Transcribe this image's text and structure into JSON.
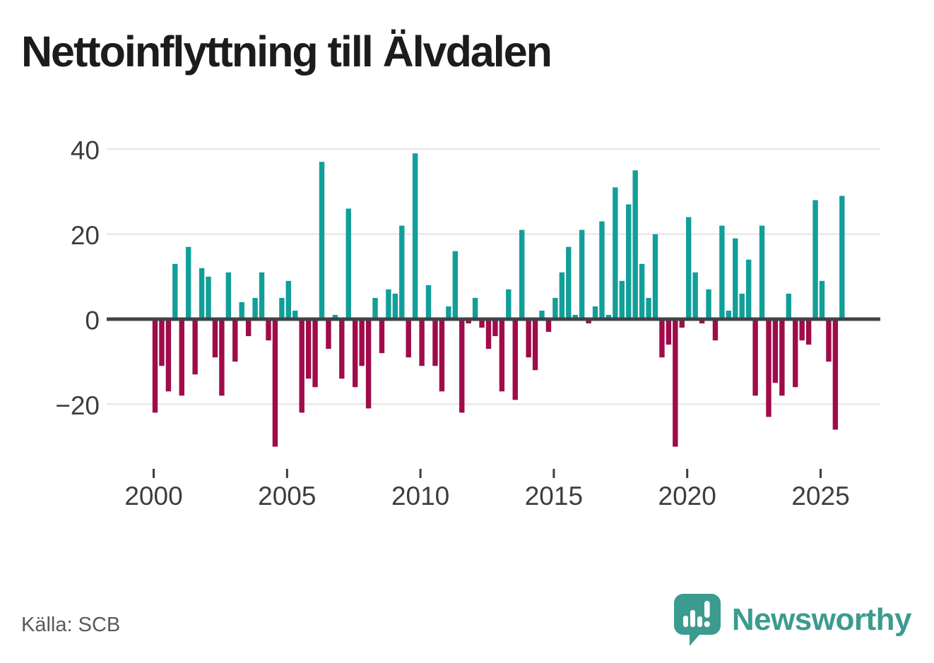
{
  "title": "Nettoinflyttning till Älvdalen",
  "source": "Källa: SCB",
  "branding": {
    "name": "Newsworthy",
    "icon": "speech-bubble-with-bar-chart-and-exclamation"
  },
  "colors": {
    "positive": "#129e99",
    "negative": "#a00b4a",
    "grid": "#e3e3e3",
    "zero_line": "#3f4347",
    "tick_label": "#3d3d3d",
    "title": "#1c1c1c",
    "source": "#5a5a5a",
    "brand": "#3c9b8f",
    "background": "#ffffff"
  },
  "y_axis": {
    "ticks": [
      40,
      20,
      0,
      -20
    ]
  },
  "x_axis": {
    "ticks": [
      "2000",
      "2005",
      "2010",
      "2015",
      "2020",
      "2025"
    ]
  },
  "chart_data": {
    "type": "bar",
    "title": "Nettoinflyttning till Älvdalen",
    "xlabel": "",
    "ylabel": "",
    "frequency": "quarterly",
    "ylim": [
      -32,
      42
    ],
    "grid": "horizontal",
    "legend": "none",
    "positive_color": "#129e99",
    "negative_color": "#a00b4a",
    "categories": [
      "2000Q1",
      "2000Q2",
      "2000Q3",
      "2000Q4",
      "2001Q1",
      "2001Q2",
      "2001Q3",
      "2001Q4",
      "2002Q1",
      "2002Q2",
      "2002Q3",
      "2002Q4",
      "2003Q1",
      "2003Q2",
      "2003Q3",
      "2003Q4",
      "2004Q1",
      "2004Q2",
      "2004Q3",
      "2004Q4",
      "2005Q1",
      "2005Q2",
      "2005Q3",
      "2005Q4",
      "2006Q1",
      "2006Q2",
      "2006Q3",
      "2006Q4",
      "2007Q1",
      "2007Q2",
      "2007Q3",
      "2007Q4",
      "2008Q1",
      "2008Q2",
      "2008Q3",
      "2008Q4",
      "2009Q1",
      "2009Q2",
      "2009Q3",
      "2009Q4",
      "2010Q1",
      "2010Q2",
      "2010Q3",
      "2010Q4",
      "2011Q1",
      "2011Q2",
      "2011Q3",
      "2011Q4",
      "2012Q1",
      "2012Q2",
      "2012Q3",
      "2012Q4",
      "2013Q1",
      "2013Q2",
      "2013Q3",
      "2013Q4",
      "2014Q1",
      "2014Q2",
      "2014Q3",
      "2014Q4",
      "2015Q1",
      "2015Q2",
      "2015Q3",
      "2015Q4",
      "2016Q1",
      "2016Q2",
      "2016Q3",
      "2016Q4",
      "2017Q1",
      "2017Q2",
      "2017Q3",
      "2017Q4",
      "2018Q1",
      "2018Q2",
      "2018Q3",
      "2018Q4",
      "2019Q1",
      "2019Q2",
      "2019Q3",
      "2019Q4",
      "2020Q1",
      "2020Q2",
      "2020Q3",
      "2020Q4",
      "2021Q1",
      "2021Q2",
      "2021Q3",
      "2021Q4",
      "2022Q1",
      "2022Q2",
      "2022Q3",
      "2022Q4",
      "2023Q1",
      "2023Q2",
      "2023Q3",
      "2023Q4",
      "2024Q1",
      "2024Q2",
      "2024Q3",
      "2024Q4",
      "2025Q1",
      "2025Q2",
      "2025Q3",
      "2025Q4"
    ],
    "values": [
      -22,
      -11,
      -17,
      13,
      -18,
      17,
      -13,
      12,
      10,
      -9,
      -18,
      11,
      -10,
      4,
      -4,
      5,
      11,
      -5,
      -30,
      5,
      9,
      2,
      -22,
      -14,
      -16,
      37,
      -7,
      1,
      -14,
      26,
      -16,
      -11,
      -21,
      5,
      -8,
      7,
      6,
      22,
      -9,
      39,
      -11,
      8,
      -11,
      -17,
      3,
      16,
      -22,
      -1,
      5,
      -2,
      -7,
      -4,
      -17,
      7,
      -19,
      21,
      -9,
      -12,
      2,
      -3,
      5,
      11,
      17,
      1,
      21,
      -1,
      3,
      23,
      1,
      31,
      9,
      27,
      35,
      13,
      5,
      20,
      -9,
      -6,
      -30,
      -2,
      24,
      11,
      -1,
      7,
      -5,
      22,
      2,
      19,
      6,
      14,
      -18,
      22,
      -23,
      -15,
      -18,
      6,
      -16,
      -5,
      -6,
      28,
      9,
      -10,
      -26,
      29
    ]
  }
}
